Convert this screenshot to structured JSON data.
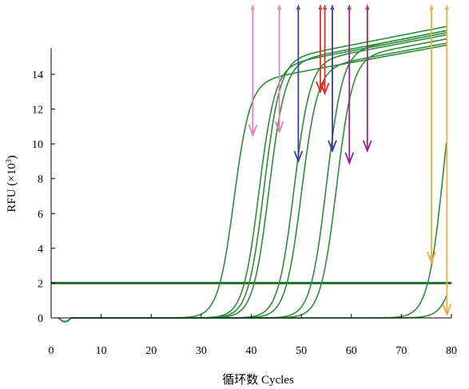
{
  "chart_data": {
    "type": "line",
    "title": "",
    "xlabel": "循环数 Cycles",
    "ylabel_main": "RFU (×10",
    "ylabel_sup": "3",
    "ylabel_close": ")",
    "xlim": [
      0,
      80
    ],
    "ylim": [
      0,
      15
    ],
    "x_ticks": [
      0,
      10,
      20,
      30,
      40,
      50,
      60,
      70,
      80
    ],
    "y_ticks": [
      0,
      2,
      4,
      6,
      8,
      10,
      12,
      14
    ],
    "grid": false,
    "line_color": "#2e8b3a",
    "threshold": {
      "value": 2,
      "color": "#1f6e2a"
    },
    "series": [
      {
        "midpoint": 36.5,
        "plateau": 13.1
      },
      {
        "midpoint": 41.5,
        "plateau": 13.7
      },
      {
        "midpoint": 42.5,
        "plateau": 14.0
      },
      {
        "midpoint": 43.5,
        "plateau": 13.8
      },
      {
        "midpoint": 48.5,
        "plateau": 13.6
      },
      {
        "midpoint": 50.0,
        "plateau": 13.2
      },
      {
        "midpoint": 55.0,
        "plateau": 13.8
      },
      {
        "midpoint": 57.0,
        "plateau": 13.4
      },
      {
        "midpoint": 78.5,
        "plateau": 14.6
      },
      {
        "midpoint": 83.0,
        "plateau": 14.0
      }
    ],
    "arrows": [
      {
        "x": 40.3,
        "y_tip": 10.5,
        "color": "#e87fb4"
      },
      {
        "x": 45.6,
        "y_tip": 10.7,
        "color": "#e87fb4"
      },
      {
        "x": 49.4,
        "y_tip": 9.0,
        "color": "#3a3aa6"
      },
      {
        "x": 53.8,
        "y_tip": 13.0,
        "color": "#d6332f"
      },
      {
        "x": 54.7,
        "y_tip": 12.9,
        "color": "#d6332f"
      },
      {
        "x": 56.2,
        "y_tip": 9.6,
        "color": "#3a3aa6"
      },
      {
        "x": 59.6,
        "y_tip": 8.9,
        "color": "#9a1f86"
      },
      {
        "x": 63.2,
        "y_tip": 9.6,
        "color": "#9a1f86"
      },
      {
        "x": 76.0,
        "y_tip": 3.2,
        "color": "#f3a83a"
      },
      {
        "x": 79.1,
        "y_tip": 0.2,
        "color": "#f3a83a"
      }
    ]
  }
}
